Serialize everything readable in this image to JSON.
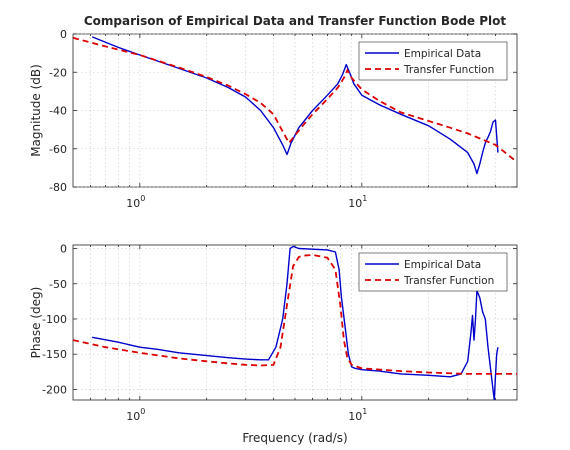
{
  "chart_data": [
    {
      "type": "line",
      "title": "Comparison of Empirical Data and Transfer Function Bode Plot",
      "ylabel": "Magnitude (dB)",
      "xlabel": "",
      "xscale": "log",
      "xlim": [
        0.5,
        50
      ],
      "ylim": [
        -80,
        0
      ],
      "yticks": [
        0,
        -20,
        -40,
        -60,
        -80
      ],
      "xticks": [
        1,
        10
      ],
      "xtick_labels": [
        {
          "base": "10",
          "exp": "0"
        },
        {
          "base": "10",
          "exp": "1"
        }
      ],
      "grid": true,
      "legend": "top-right",
      "series": [
        {
          "name": "Empirical Data",
          "color": "#0000cc",
          "style": "solid",
          "x": [
            0.61,
            0.8,
            1.0,
            1.5,
            2.0,
            2.5,
            3.0,
            3.5,
            4.0,
            4.4,
            4.6,
            4.8,
            5.2,
            6.0,
            7.0,
            7.8,
            8.2,
            8.5,
            8.8,
            9.2,
            10,
            12,
            15,
            20,
            25,
            30,
            32,
            33,
            34,
            35,
            36,
            37,
            38,
            39,
            40,
            41
          ],
          "values": [
            -1.5,
            -7,
            -11,
            -18,
            -23,
            -28,
            -33,
            -40,
            -49,
            -58,
            -63,
            -57,
            -49,
            -40,
            -32,
            -26,
            -21,
            -16,
            -20,
            -26,
            -32,
            -37,
            -42,
            -48,
            -55,
            -62,
            -68,
            -73,
            -68,
            -62,
            -57,
            -54,
            -51,
            -46,
            -45,
            -62
          ]
        },
        {
          "name": "Transfer Function",
          "color": "#dd0000",
          "style": "dashed",
          "x": [
            0.5,
            0.7,
            1.0,
            1.5,
            2.0,
            2.5,
            3.0,
            3.5,
            4.0,
            4.4,
            4.7,
            5.0,
            5.5,
            6.0,
            7.0,
            7.8,
            8.3,
            8.6,
            9.0,
            10,
            12,
            15,
            20,
            25,
            30,
            40,
            50
          ],
          "values": [
            -2,
            -6.5,
            -11,
            -17.5,
            -22.5,
            -27,
            -31.5,
            -36,
            -42,
            -51,
            -57,
            -53,
            -47,
            -42,
            -34,
            -28,
            -23,
            -19,
            -23,
            -29,
            -35,
            -41,
            -45.5,
            -49,
            -52,
            -58,
            -67
          ]
        }
      ]
    },
    {
      "type": "line",
      "title": "",
      "ylabel": "Phase (deg)",
      "xlabel": "Frequency (rad/s)",
      "xscale": "log",
      "xlim": [
        0.5,
        50
      ],
      "ylim": [
        -215,
        5
      ],
      "yticks": [
        0,
        -50,
        -100,
        -150,
        -200
      ],
      "xticks": [
        1,
        10
      ],
      "xtick_labels": [
        {
          "base": "10",
          "exp": "0"
        },
        {
          "base": "10",
          "exp": "1"
        }
      ],
      "grid": true,
      "legend": "top-right",
      "series": [
        {
          "name": "Empirical Data",
          "color": "#0000cc",
          "style": "solid",
          "x": [
            0.61,
            0.8,
            1.0,
            1.2,
            1.5,
            2.0,
            2.5,
            3.0,
            3.5,
            3.8,
            4.1,
            4.4,
            4.6,
            4.75,
            4.9,
            5.2,
            6.0,
            7.0,
            7.6,
            7.9,
            8.1,
            8.4,
            8.7,
            9.0,
            9.3,
            10,
            12,
            15,
            20,
            25,
            28,
            30,
            31,
            31.5,
            32,
            32.5,
            33,
            33.5,
            34,
            34.5,
            35,
            36,
            37,
            38,
            39,
            39.5,
            40,
            40.5,
            41
          ],
          "values": [
            -126,
            -133,
            -140,
            -143,
            -148,
            -152,
            -155,
            -157,
            -158,
            -158,
            -140,
            -100,
            -50,
            0,
            3,
            0,
            -1,
            -2,
            -5,
            -30,
            -70,
            -110,
            -150,
            -168,
            -170,
            -172,
            -174,
            -178,
            -180,
            -182,
            -178,
            -160,
            -120,
            -95,
            -130,
            -100,
            -60,
            -65,
            -70,
            -80,
            -90,
            -100,
            -140,
            -170,
            -200,
            -215,
            -180,
            -150,
            -140
          ]
        },
        {
          "name": "Transfer Function",
          "color": "#dd0000",
          "style": "dashed",
          "x": [
            0.5,
            0.7,
            1.0,
            1.5,
            2.0,
            2.5,
            3.0,
            3.5,
            4.0,
            4.3,
            4.6,
            4.9,
            5.2,
            5.5,
            6.0,
            7.0,
            7.6,
            8.0,
            8.3,
            8.6,
            9.0,
            10,
            15,
            20,
            30,
            40,
            50
          ],
          "values": [
            -130,
            -140,
            -148,
            -156,
            -160,
            -163,
            -165,
            -166,
            -165,
            -140,
            -80,
            -25,
            -12,
            -10,
            -9,
            -13,
            -30,
            -80,
            -130,
            -155,
            -165,
            -170,
            -174,
            -176,
            -178,
            -178,
            -178
          ]
        }
      ]
    }
  ]
}
